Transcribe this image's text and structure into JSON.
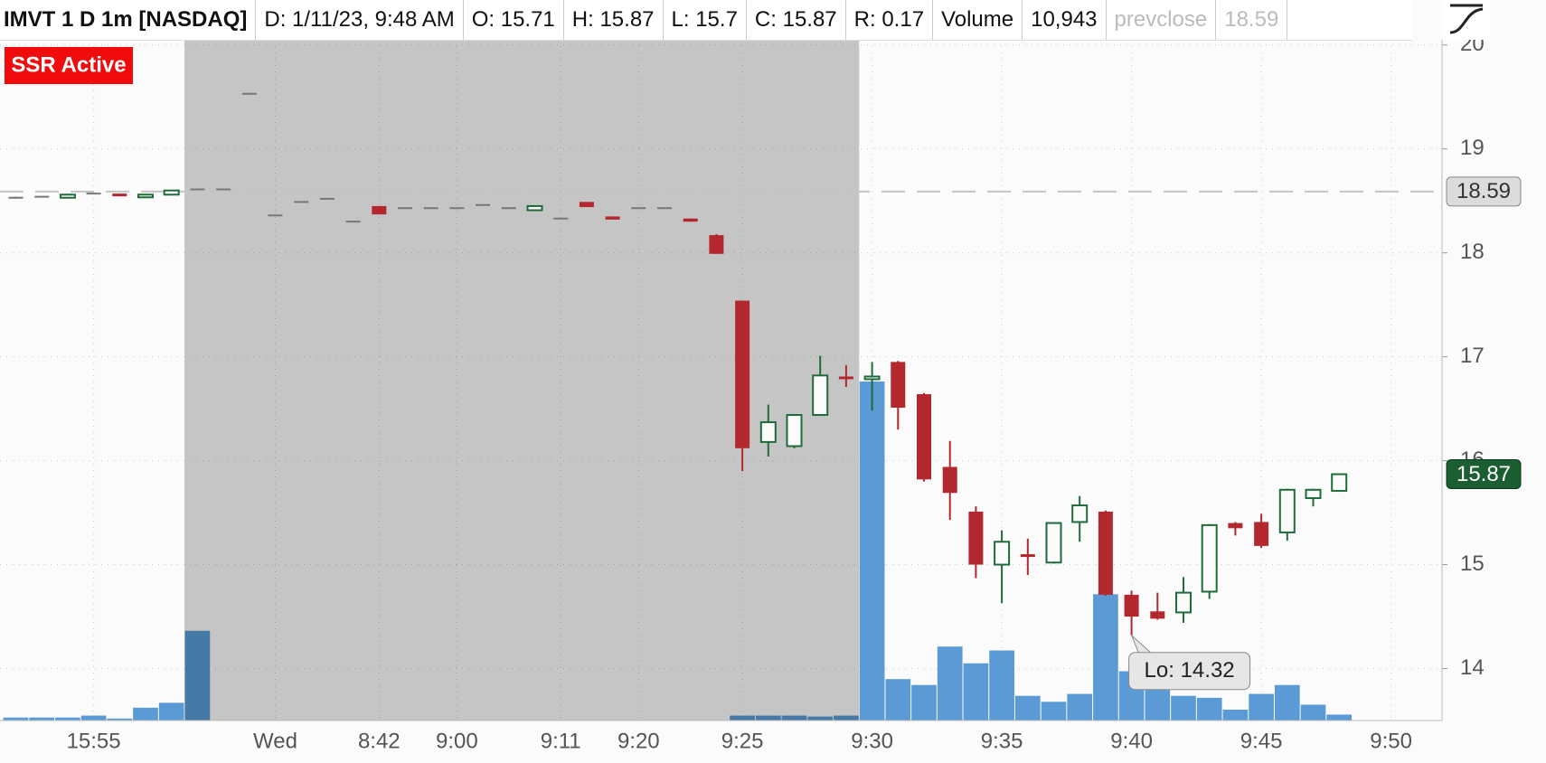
{
  "header": {
    "items": [
      {
        "text": "IMVT 1 D 1m [NASDAQ]",
        "muted": false
      },
      {
        "text": "D: 1/11/23, 9:48 AM",
        "muted": false
      },
      {
        "text": "O: 15.71",
        "muted": false
      },
      {
        "text": "H: 15.87",
        "muted": false
      },
      {
        "text": "L: 15.7",
        "muted": false
      },
      {
        "text": "C: 15.87",
        "muted": false
      },
      {
        "text": "R: 0.17",
        "muted": false
      },
      {
        "text": "Volume",
        "muted": false
      },
      {
        "text": "10,943",
        "muted": false
      },
      {
        "text": "prevclose",
        "muted": true
      },
      {
        "text": "18.59",
        "muted": true
      }
    ]
  },
  "badge": "SSR Active",
  "chart_data": {
    "type": "candlestick",
    "categories": [
      null,
      null,
      null,
      "15:55",
      null,
      null,
      null,
      null,
      null,
      null,
      "Wed",
      null,
      null,
      null,
      "8:42",
      null,
      null,
      "9:00",
      null,
      null,
      null,
      "9:11",
      null,
      null,
      "9:20",
      null,
      null,
      null,
      "9:25",
      null,
      null,
      null,
      null,
      "9:30",
      null,
      null,
      null,
      null,
      "9:35",
      null,
      null,
      null,
      null,
      "9:40",
      null,
      null,
      null,
      null,
      "9:45",
      null,
      null,
      null,
      null,
      "9:50"
    ],
    "ohlc": [
      [
        18.53,
        18.54,
        18.52,
        18.53
      ],
      [
        18.54,
        18.54,
        18.54,
        18.54
      ],
      [
        18.53,
        18.56,
        18.53,
        18.56
      ],
      [
        18.57,
        18.57,
        18.57,
        18.57
      ],
      [
        18.57,
        18.57,
        18.55,
        18.55
      ],
      [
        18.55,
        18.56,
        18.55,
        18.56
      ],
      [
        18.56,
        18.6,
        18.56,
        18.6
      ],
      [
        18.61,
        18.61,
        18.61,
        18.61
      ],
      [
        18.61,
        18.61,
        18.61,
        18.61
      ],
      [
        19.53,
        19.53,
        19.53,
        19.53
      ],
      [
        18.36,
        18.36,
        18.36,
        18.36
      ],
      [
        18.49,
        18.49,
        18.49,
        18.49
      ],
      [
        18.52,
        18.52,
        18.52,
        18.52
      ],
      [
        18.3,
        18.3,
        18.3,
        18.3
      ],
      [
        18.45,
        18.45,
        18.37,
        18.37
      ],
      [
        18.43,
        18.43,
        18.43,
        18.43
      ],
      [
        18.43,
        18.43,
        18.43,
        18.43
      ],
      [
        18.43,
        18.43,
        18.43,
        18.43
      ],
      [
        18.46,
        18.46,
        18.46,
        18.46
      ],
      [
        18.43,
        18.43,
        18.43,
        18.43
      ],
      [
        18.41,
        18.45,
        18.41,
        18.45
      ],
      [
        18.33,
        18.33,
        18.33,
        18.33
      ],
      [
        18.49,
        18.49,
        18.44,
        18.44
      ],
      [
        18.35,
        18.35,
        18.32,
        18.32
      ],
      [
        18.43,
        18.43,
        18.43,
        18.43
      ],
      [
        18.43,
        18.43,
        18.43,
        18.43
      ],
      [
        18.33,
        18.33,
        18.3,
        18.3
      ],
      [
        18.17,
        18.18,
        17.99,
        17.99
      ],
      [
        17.54,
        17.54,
        15.9,
        16.12
      ],
      [
        16.18,
        16.54,
        16.04,
        16.37
      ],
      [
        16.14,
        16.45,
        16.12,
        16.44
      ],
      [
        16.44,
        17.01,
        16.43,
        16.82
      ],
      [
        16.81,
        16.92,
        16.71,
        16.79
      ],
      [
        16.79,
        16.95,
        16.48,
        16.81
      ],
      [
        16.95,
        16.96,
        16.3,
        16.51
      ],
      [
        16.64,
        16.65,
        15.8,
        15.82
      ],
      [
        15.94,
        16.19,
        15.43,
        15.69
      ],
      [
        15.51,
        15.56,
        14.87,
        15.0
      ],
      [
        15.0,
        15.33,
        14.63,
        15.22
      ],
      [
        15.1,
        15.25,
        14.9,
        15.09
      ],
      [
        15.02,
        15.41,
        15.01,
        15.4
      ],
      [
        15.41,
        15.66,
        15.22,
        15.57
      ],
      [
        15.51,
        15.52,
        14.7,
        14.71
      ],
      [
        14.71,
        14.75,
        14.32,
        14.5
      ],
      [
        14.55,
        14.73,
        14.47,
        14.48
      ],
      [
        14.54,
        14.88,
        14.44,
        14.73
      ],
      [
        14.74,
        15.39,
        14.67,
        15.38
      ],
      [
        15.4,
        15.41,
        15.28,
        15.35
      ],
      [
        15.41,
        15.49,
        15.16,
        15.18
      ],
      [
        15.31,
        15.73,
        15.23,
        15.72
      ],
      [
        15.64,
        15.73,
        15.56,
        15.72
      ],
      [
        15.71,
        15.87,
        15.7,
        15.87
      ],
      null,
      null
    ],
    "volume": [
      5500,
      5500,
      5500,
      9100,
      3600,
      23700,
      32800,
      166000,
      null,
      null,
      null,
      null,
      null,
      null,
      null,
      null,
      null,
      null,
      null,
      null,
      null,
      null,
      null,
      null,
      null,
      null,
      null,
      null,
      9100,
      9100,
      9100,
      7300,
      9100,
      627000,
      76600,
      65700,
      136800,
      105800,
      129500,
      45600,
      34700,
      49200,
      233500,
      91200,
      71100,
      45600,
      42000,
      20100,
      49200,
      65700,
      29200,
      10943,
      null,
      null
    ],
    "up_color": "#1f6b3a",
    "down_color": "#b3282e",
    "flat_color": "#777777",
    "volume_color": "#5b9bd5",
    "ylim": [
      13.5,
      20.05
    ],
    "yticks": [
      14,
      15,
      16,
      17,
      18,
      19,
      20
    ],
    "grid": true,
    "prev_close": 18.59,
    "last": 15.87,
    "shaded": {
      "start": 7,
      "end": 32
    },
    "annotation": {
      "text": "Lo: 14.32",
      "index": 43
    }
  }
}
